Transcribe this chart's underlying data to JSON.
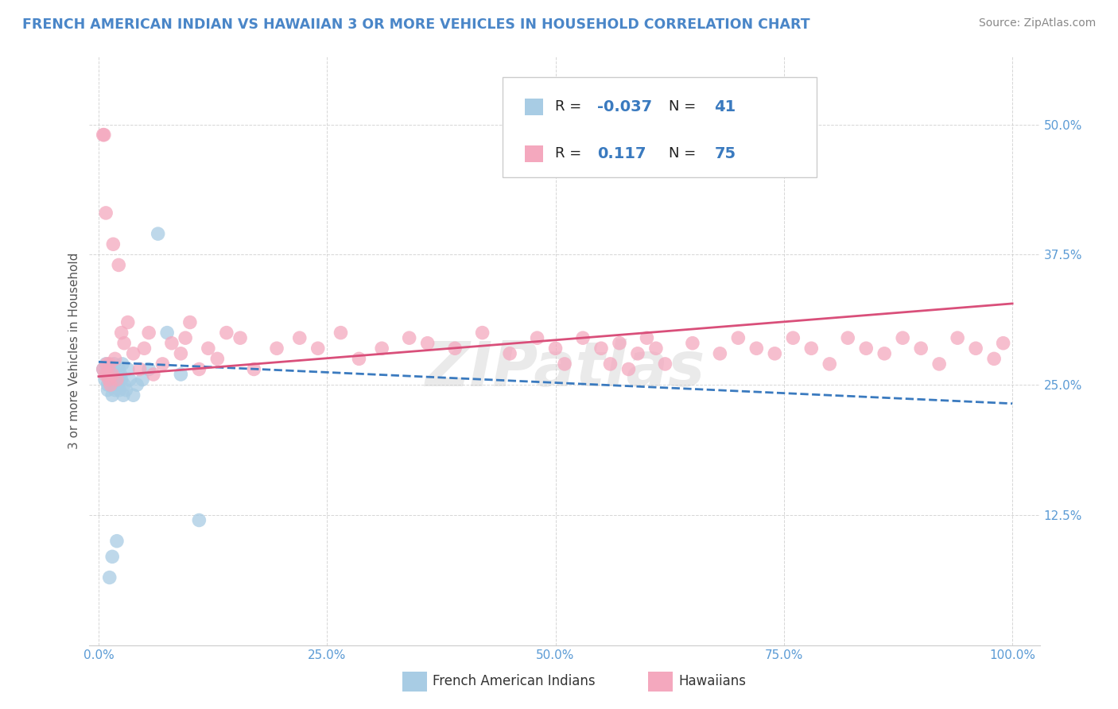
{
  "title": "FRENCH AMERICAN INDIAN VS HAWAIIAN 3 OR MORE VEHICLES IN HOUSEHOLD CORRELATION CHART",
  "source": "Source: ZipAtlas.com",
  "ylabel": "3 or more Vehicles in Household",
  "xlim": [
    -0.01,
    1.03
  ],
  "ylim": [
    0.0,
    0.565
  ],
  "xticks": [
    0.0,
    0.25,
    0.5,
    0.75,
    1.0
  ],
  "xtick_labels": [
    "0.0%",
    "25.0%",
    "50.0%",
    "75.0%",
    "100.0%"
  ],
  "yticks": [
    0.0,
    0.125,
    0.25,
    0.375,
    0.5
  ],
  "ytick_labels": [
    "",
    "12.5%",
    "25.0%",
    "37.5%",
    "50.0%"
  ],
  "color_blue": "#a8cce4",
  "color_pink": "#f4a8be",
  "color_line_blue": "#3a7abf",
  "color_line_pink": "#d94f7a",
  "watermark": "ZIPatlas",
  "title_color": "#4a86c8",
  "blue_line_x0": 0.0,
  "blue_line_x1": 1.0,
  "blue_line_y0": 0.272,
  "blue_line_y1": 0.232,
  "pink_line_x0": 0.0,
  "pink_line_x1": 1.0,
  "pink_line_y0": 0.258,
  "pink_line_y1": 0.328,
  "blue_x": [
    0.005,
    0.007,
    0.008,
    0.009,
    0.01,
    0.01,
    0.011,
    0.012,
    0.013,
    0.013,
    0.014,
    0.014,
    0.015,
    0.015,
    0.016,
    0.017,
    0.018,
    0.019,
    0.02,
    0.021,
    0.022,
    0.023,
    0.024,
    0.025,
    0.026,
    0.027,
    0.028,
    0.03,
    0.032,
    0.034,
    0.038,
    0.042,
    0.048,
    0.055,
    0.065,
    0.075,
    0.09,
    0.11,
    0.02,
    0.015,
    0.012
  ],
  "blue_y": [
    0.265,
    0.255,
    0.27,
    0.26,
    0.25,
    0.245,
    0.26,
    0.255,
    0.265,
    0.25,
    0.255,
    0.26,
    0.24,
    0.265,
    0.255,
    0.27,
    0.245,
    0.26,
    0.255,
    0.25,
    0.265,
    0.245,
    0.26,
    0.255,
    0.27,
    0.24,
    0.25,
    0.245,
    0.265,
    0.255,
    0.24,
    0.25,
    0.255,
    0.265,
    0.395,
    0.3,
    0.26,
    0.12,
    0.1,
    0.085,
    0.065
  ],
  "pink_x": [
    0.005,
    0.006,
    0.007,
    0.008,
    0.009,
    0.01,
    0.011,
    0.012,
    0.013,
    0.015,
    0.016,
    0.018,
    0.02,
    0.022,
    0.025,
    0.028,
    0.032,
    0.038,
    0.045,
    0.05,
    0.055,
    0.06,
    0.07,
    0.08,
    0.09,
    0.095,
    0.1,
    0.11,
    0.12,
    0.13,
    0.14,
    0.155,
    0.17,
    0.195,
    0.22,
    0.24,
    0.265,
    0.285,
    0.31,
    0.34,
    0.36,
    0.39,
    0.42,
    0.45,
    0.48,
    0.5,
    0.51,
    0.53,
    0.55,
    0.56,
    0.57,
    0.58,
    0.59,
    0.6,
    0.61,
    0.62,
    0.65,
    0.68,
    0.7,
    0.72,
    0.74,
    0.76,
    0.78,
    0.8,
    0.82,
    0.84,
    0.86,
    0.88,
    0.9,
    0.92,
    0.94,
    0.96,
    0.98,
    0.99,
    0.005
  ],
  "pink_y": [
    0.265,
    0.49,
    0.26,
    0.415,
    0.27,
    0.26,
    0.255,
    0.27,
    0.25,
    0.26,
    0.385,
    0.275,
    0.255,
    0.365,
    0.3,
    0.29,
    0.31,
    0.28,
    0.265,
    0.285,
    0.3,
    0.26,
    0.27,
    0.29,
    0.28,
    0.295,
    0.31,
    0.265,
    0.285,
    0.275,
    0.3,
    0.295,
    0.265,
    0.285,
    0.295,
    0.285,
    0.3,
    0.275,
    0.285,
    0.295,
    0.29,
    0.285,
    0.3,
    0.28,
    0.295,
    0.285,
    0.27,
    0.295,
    0.285,
    0.27,
    0.29,
    0.265,
    0.28,
    0.295,
    0.285,
    0.27,
    0.29,
    0.28,
    0.295,
    0.285,
    0.28,
    0.295,
    0.285,
    0.27,
    0.295,
    0.285,
    0.28,
    0.295,
    0.285,
    0.27,
    0.295,
    0.285,
    0.275,
    0.29,
    0.49
  ]
}
